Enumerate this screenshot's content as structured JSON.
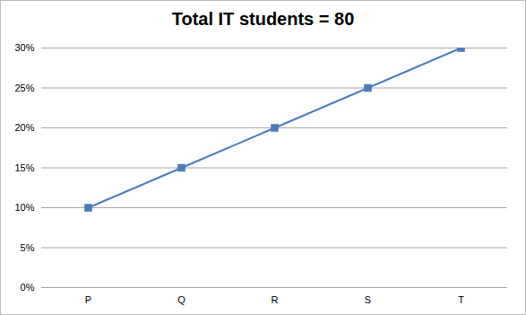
{
  "chart_data": {
    "type": "line",
    "title": "Total IT students = 80",
    "categories": [
      "P",
      "Q",
      "R",
      "S",
      "T"
    ],
    "values": [
      10,
      15,
      20,
      25,
      30
    ],
    "color": "#4a7ebb",
    "marker": "square",
    "ylim": [
      0,
      30
    ],
    "yticks": [
      {
        "value": 0,
        "label": "0%"
      },
      {
        "value": 5,
        "label": "5%"
      },
      {
        "value": 10,
        "label": "10%"
      },
      {
        "value": 15,
        "label": "15%"
      },
      {
        "value": 20,
        "label": "20%"
      },
      {
        "value": 25,
        "label": "25%"
      },
      {
        "value": 30,
        "label": "30%"
      }
    ],
    "grid": true
  }
}
